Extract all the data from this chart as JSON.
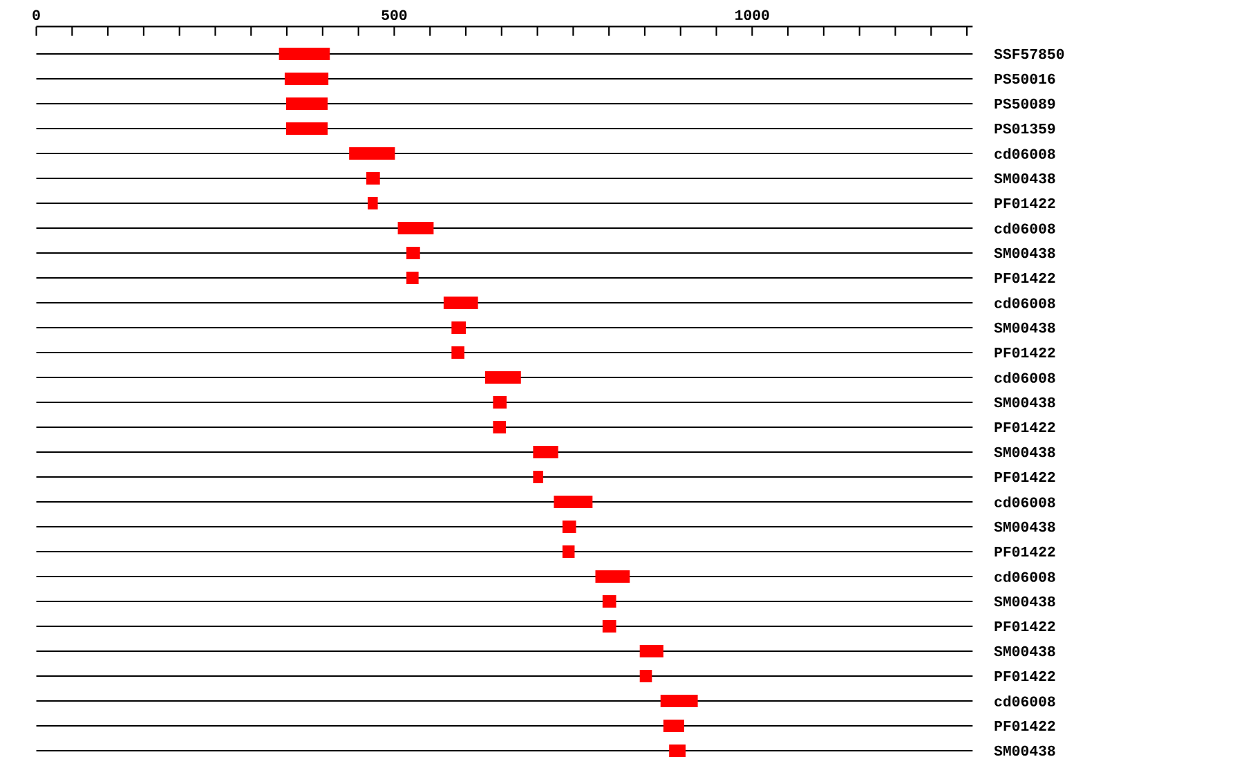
{
  "chart_data": {
    "type": "bar",
    "orientation": "horizontal",
    "grid": "y",
    "color": "#ff0000",
    "categories": [
      "SSF57850",
      "PS50016",
      "PS50089",
      "PS01359",
      "cd06008",
      "SM00438",
      "PF01422",
      "cd06008",
      "SM00438",
      "PF01422",
      "cd06008",
      "SM00438",
      "PF01422",
      "cd06008",
      "SM00438",
      "PF01422",
      "SM00438",
      "PF01422",
      "cd06008",
      "SM00438",
      "PF01422",
      "cd06008",
      "SM00438",
      "PF01422",
      "SM00438",
      "PF01422",
      "cd06008",
      "PF01422",
      "SM00438"
    ],
    "base": [
      339,
      347,
      349,
      349,
      437,
      461,
      463,
      505,
      517,
      517,
      569,
      580,
      580,
      627,
      638,
      638,
      694,
      694,
      723,
      735,
      735,
      781,
      791,
      791,
      843,
      843,
      872,
      876,
      884
    ],
    "values": [
      71,
      61,
      58,
      58,
      64,
      19,
      14,
      50,
      19,
      17,
      48,
      20,
      18,
      50,
      19,
      18,
      35,
      14,
      54,
      19,
      17,
      48,
      19,
      19,
      33,
      17,
      52,
      29,
      23
    ],
    "xlim": [
      0,
      1308
    ],
    "xticks": [
      0,
      {
        "value": 50,
        "label": null
      },
      {
        "value": 100,
        "label": null
      },
      {
        "value": 150,
        "label": null
      },
      {
        "value": 200,
        "label": null
      },
      {
        "value": 250,
        "label": null
      },
      {
        "value": 300,
        "label": null
      },
      {
        "value": 350,
        "label": null
      },
      {
        "value": 400,
        "label": null
      },
      {
        "value": 450,
        "label": null
      },
      500,
      {
        "value": 550,
        "label": null
      },
      {
        "value": 600,
        "label": null
      },
      {
        "value": 650,
        "label": null
      },
      {
        "value": 700,
        "label": null
      },
      {
        "value": 750,
        "label": null
      },
      {
        "value": 800,
        "label": null
      },
      {
        "value": 850,
        "label": null
      },
      {
        "value": 900,
        "label": null
      },
      {
        "value": 950,
        "label": null
      },
      1000,
      {
        "value": 1050,
        "label": null
      },
      {
        "value": 1100,
        "label": null
      },
      {
        "value": 1150,
        "label": null
      },
      {
        "value": 1200,
        "label": null
      },
      {
        "value": 1250,
        "label": null
      },
      {
        "value": 1300,
        "label": null
      }
    ]
  }
}
